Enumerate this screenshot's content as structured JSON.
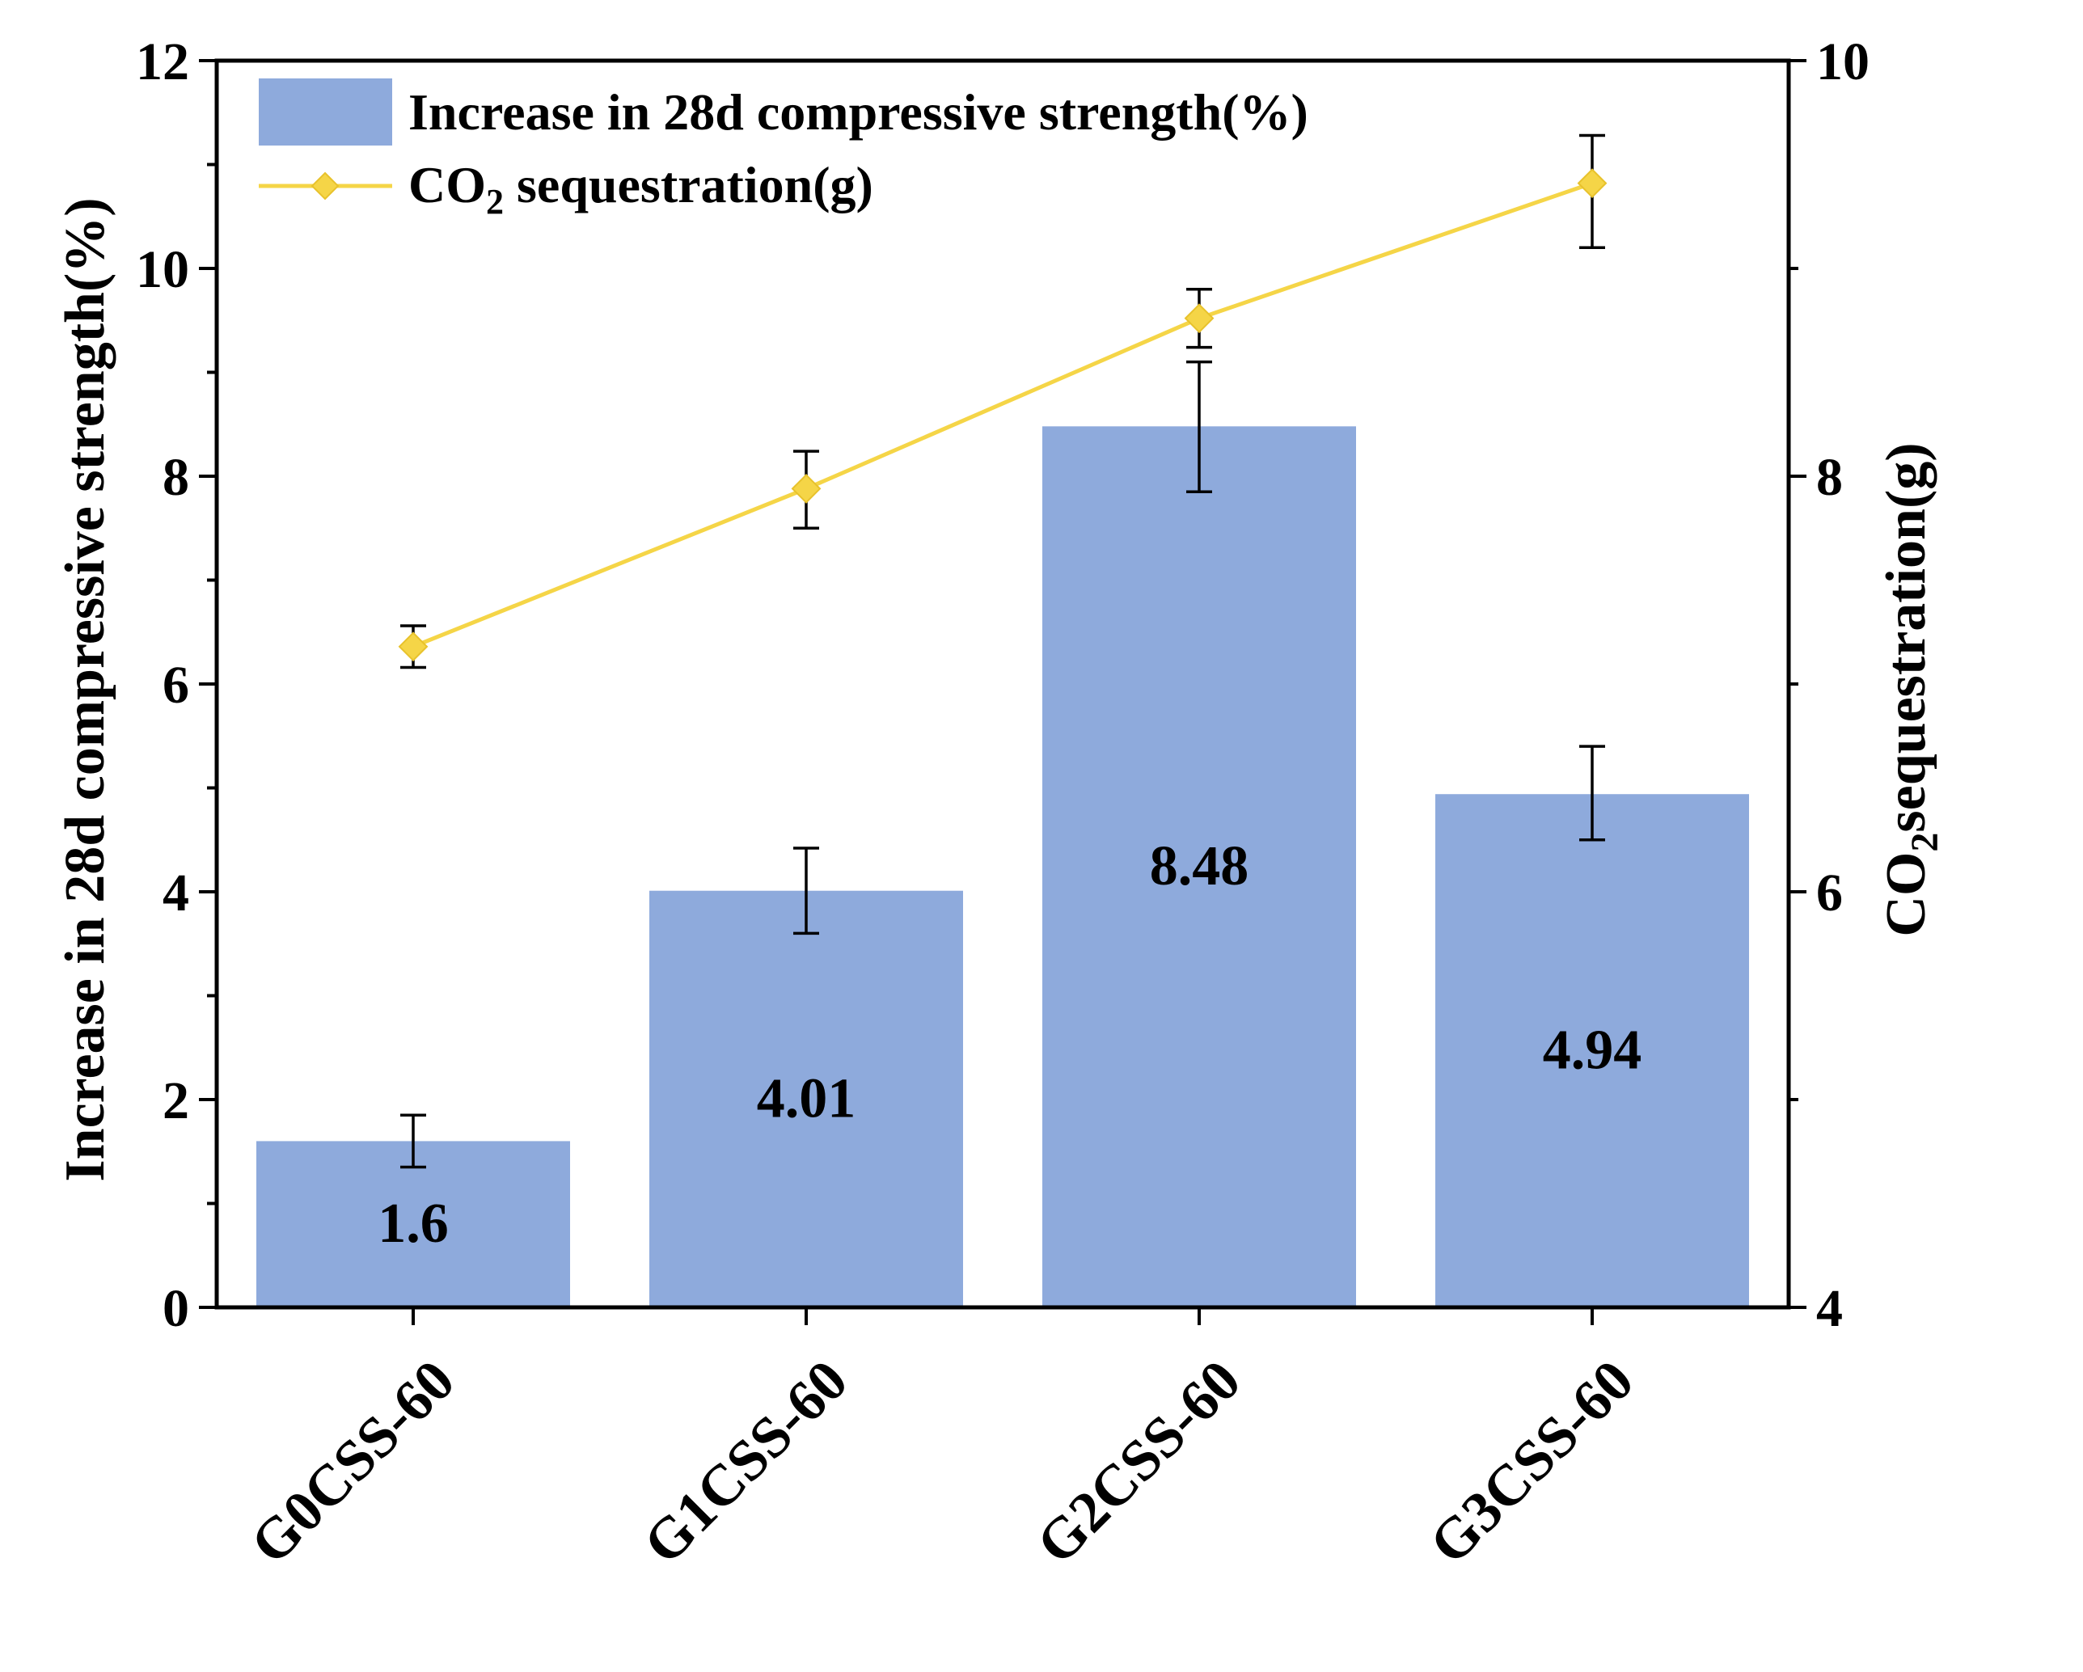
{
  "chart_data": {
    "type": "bar",
    "categories": [
      "G0CSS-60",
      "G1CSS-60",
      "G2CSS-60",
      "G3CSS-60"
    ],
    "series": [
      {
        "name": "Increase in 28d compressive strength(%)",
        "kind": "bar",
        "axis": "left",
        "values": [
          1.6,
          4.01,
          8.48,
          4.94
        ],
        "labels": [
          "1.6",
          "4.01",
          "8.48",
          "4.94"
        ],
        "err_low": [
          1.35,
          3.6,
          7.85,
          4.5
        ],
        "err_high": [
          1.85,
          4.42,
          9.1,
          5.4
        ],
        "color": "#8eaadc"
      },
      {
        "name_prefix": "CO",
        "name_sub": "2",
        "name_suffix": " sequestration(g)",
        "kind": "line",
        "axis": "right",
        "values": [
          7.18,
          7.94,
          8.76,
          9.41
        ],
        "err_low": [
          7.08,
          7.75,
          8.62,
          9.1
        ],
        "err_high": [
          7.28,
          8.12,
          8.9,
          9.64
        ],
        "color": "#f5d547",
        "marker": "diamond"
      }
    ],
    "ylabel_left": "Increase in 28d compressive strength(%)",
    "ylabel_right_prefix": "CO",
    "ylabel_right_sub": "2",
    "ylabel_right_suffix": "sequestration(g)",
    "ylim_left": [
      0,
      12
    ],
    "ylim_right": [
      4,
      10
    ],
    "yticks_left": [
      "0",
      "2",
      "4",
      "6",
      "8",
      "10",
      "12"
    ],
    "yticks_right": [
      "4",
      "6",
      "8",
      "10"
    ],
    "legend": "top-left",
    "grid": false
  }
}
